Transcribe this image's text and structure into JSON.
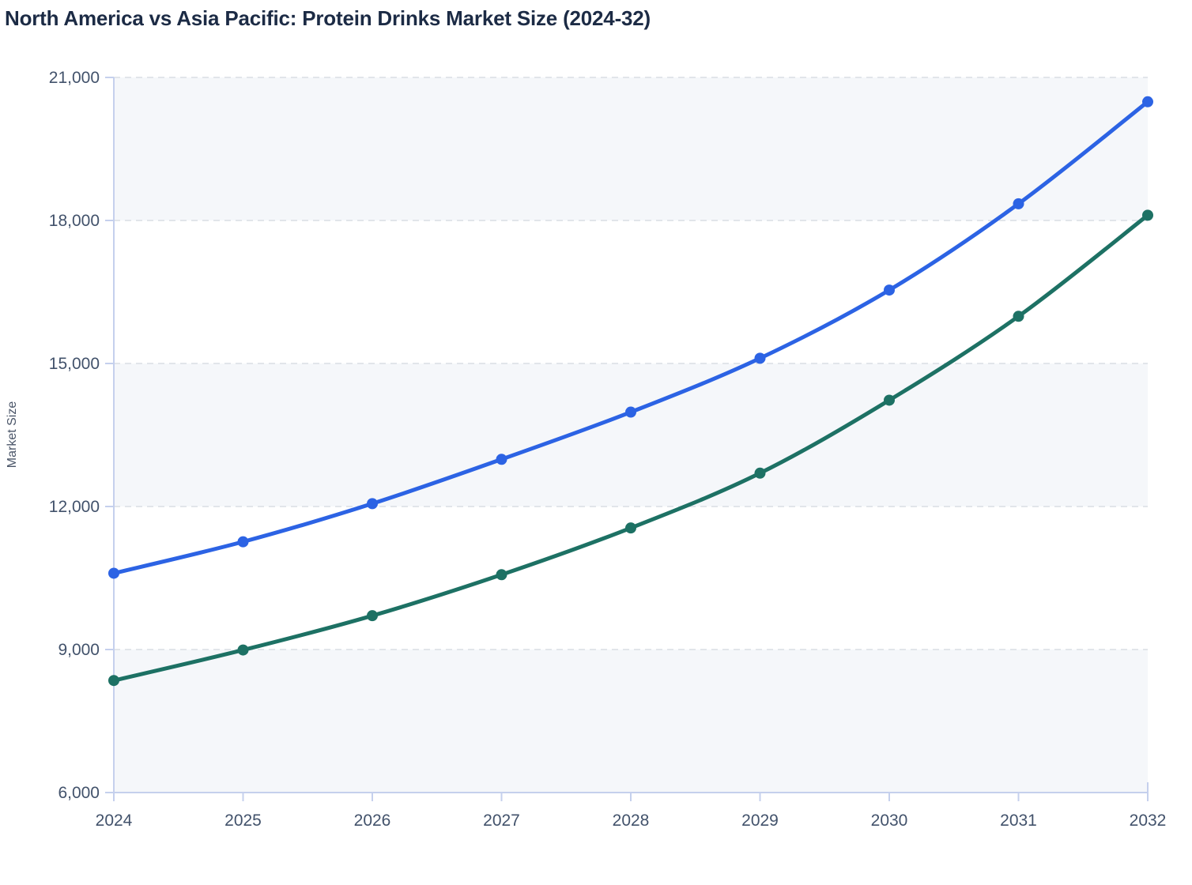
{
  "header": {
    "title": "North America vs Asia Pacific: Protein Drinks Market Size (2024-32)"
  },
  "chart_data": {
    "type": "line",
    "title": "North America vs Asia Pacific: Protein Drinks Market Size (2024-32)",
    "x": [
      2024,
      2025,
      2026,
      2027,
      2028,
      2029,
      2030,
      2031,
      2032
    ],
    "xtick_labels": [
      "2024",
      "2025",
      "2026",
      "2027",
      "2028",
      "2029",
      "2030",
      "2031",
      "2032"
    ],
    "series": [
      {
        "name": "North America",
        "color": "#2c63e4",
        "values": [
          10600,
          11260,
          12060,
          12990,
          13980,
          15110,
          16540,
          18350,
          20490
        ]
      },
      {
        "name": "Asia Pacific",
        "color": "#1d7164",
        "values": [
          8350,
          8990,
          9710,
          10570,
          11550,
          12700,
          14230,
          15990,
          18110
        ]
      }
    ],
    "xlabel": "",
    "ylabel": "Market Size",
    "ylim": [
      6000,
      21000
    ],
    "yticks": [
      6000,
      9000,
      12000,
      15000,
      18000,
      21000
    ],
    "ytick_labels": [
      "6,000",
      "9,000",
      "12,000",
      "15,000",
      "18,000",
      "21,000"
    ],
    "grid": "horizontal-dashed",
    "legend": "none",
    "background_bands": "alternating-horizontal",
    "style": {
      "axis_color": "#c5d0ed",
      "grid_color": "#e1e5ea",
      "band_color": "#f5f7fa",
      "band_alt_color": "#ffffff",
      "tick_label_color": "#42526b",
      "title_color": "#1c2b45",
      "line_width": 5,
      "marker_radius": 7
    }
  }
}
